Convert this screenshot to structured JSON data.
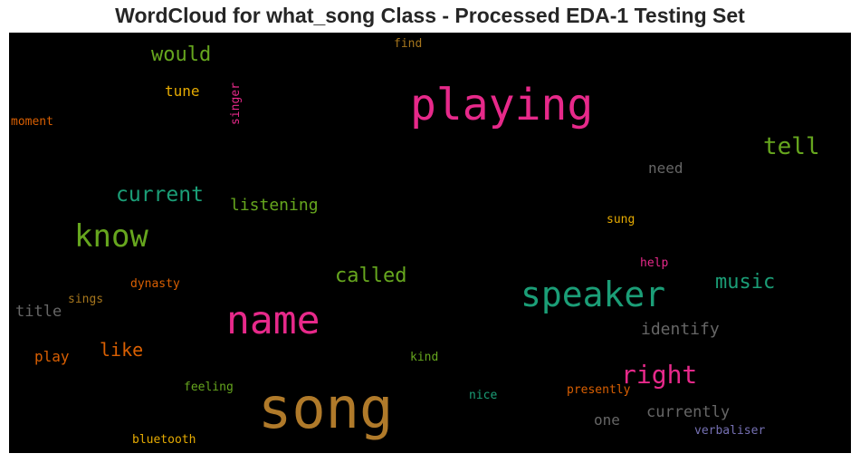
{
  "title": "WordCloud for what_song Class - Processed EDA-1 Testing Set",
  "chart_data": {
    "type": "wordcloud",
    "background": "#000000",
    "words": [
      {
        "text": "song",
        "color": "#b07a2a"
      },
      {
        "text": "playing",
        "color": "#e7298a"
      },
      {
        "text": "name",
        "color": "#e7298a"
      },
      {
        "text": "speaker",
        "color": "#1b9e77"
      },
      {
        "text": "know",
        "color": "#66a61e"
      },
      {
        "text": "right",
        "color": "#e7298a"
      },
      {
        "text": "tell",
        "color": "#66a61e"
      },
      {
        "text": "current",
        "color": "#1b9e77"
      },
      {
        "text": "would",
        "color": "#66a61e"
      },
      {
        "text": "called",
        "color": "#66a61e"
      },
      {
        "text": "music",
        "color": "#1b9e77"
      },
      {
        "text": "like",
        "color": "#d95f02"
      },
      {
        "text": "listening",
        "color": "#66a61e"
      },
      {
        "text": "identify",
        "color": "#666666"
      },
      {
        "text": "currently",
        "color": "#666666"
      },
      {
        "text": "need",
        "color": "#666666"
      },
      {
        "text": "tune",
        "color": "#e6ab02"
      },
      {
        "text": "title",
        "color": "#666666"
      },
      {
        "text": "play",
        "color": "#d95f02"
      },
      {
        "text": "one",
        "color": "#666666"
      },
      {
        "text": "moment",
        "color": "#d95f02"
      },
      {
        "text": "singer",
        "color": "#e7298a"
      },
      {
        "text": "find",
        "color": "#a6761d"
      },
      {
        "text": "sung",
        "color": "#e6ab02"
      },
      {
        "text": "help",
        "color": "#e7298a"
      },
      {
        "text": "dynasty",
        "color": "#d95f02"
      },
      {
        "text": "sings",
        "color": "#a6761d"
      },
      {
        "text": "kind",
        "color": "#66a61e"
      },
      {
        "text": "feeling",
        "color": "#66a61e"
      },
      {
        "text": "nice",
        "color": "#1b9e77"
      },
      {
        "text": "presently",
        "color": "#d95f02"
      },
      {
        "text": "bluetooth",
        "color": "#e6ab02"
      },
      {
        "text": "verbaliser",
        "color": "#7570b3"
      }
    ]
  }
}
